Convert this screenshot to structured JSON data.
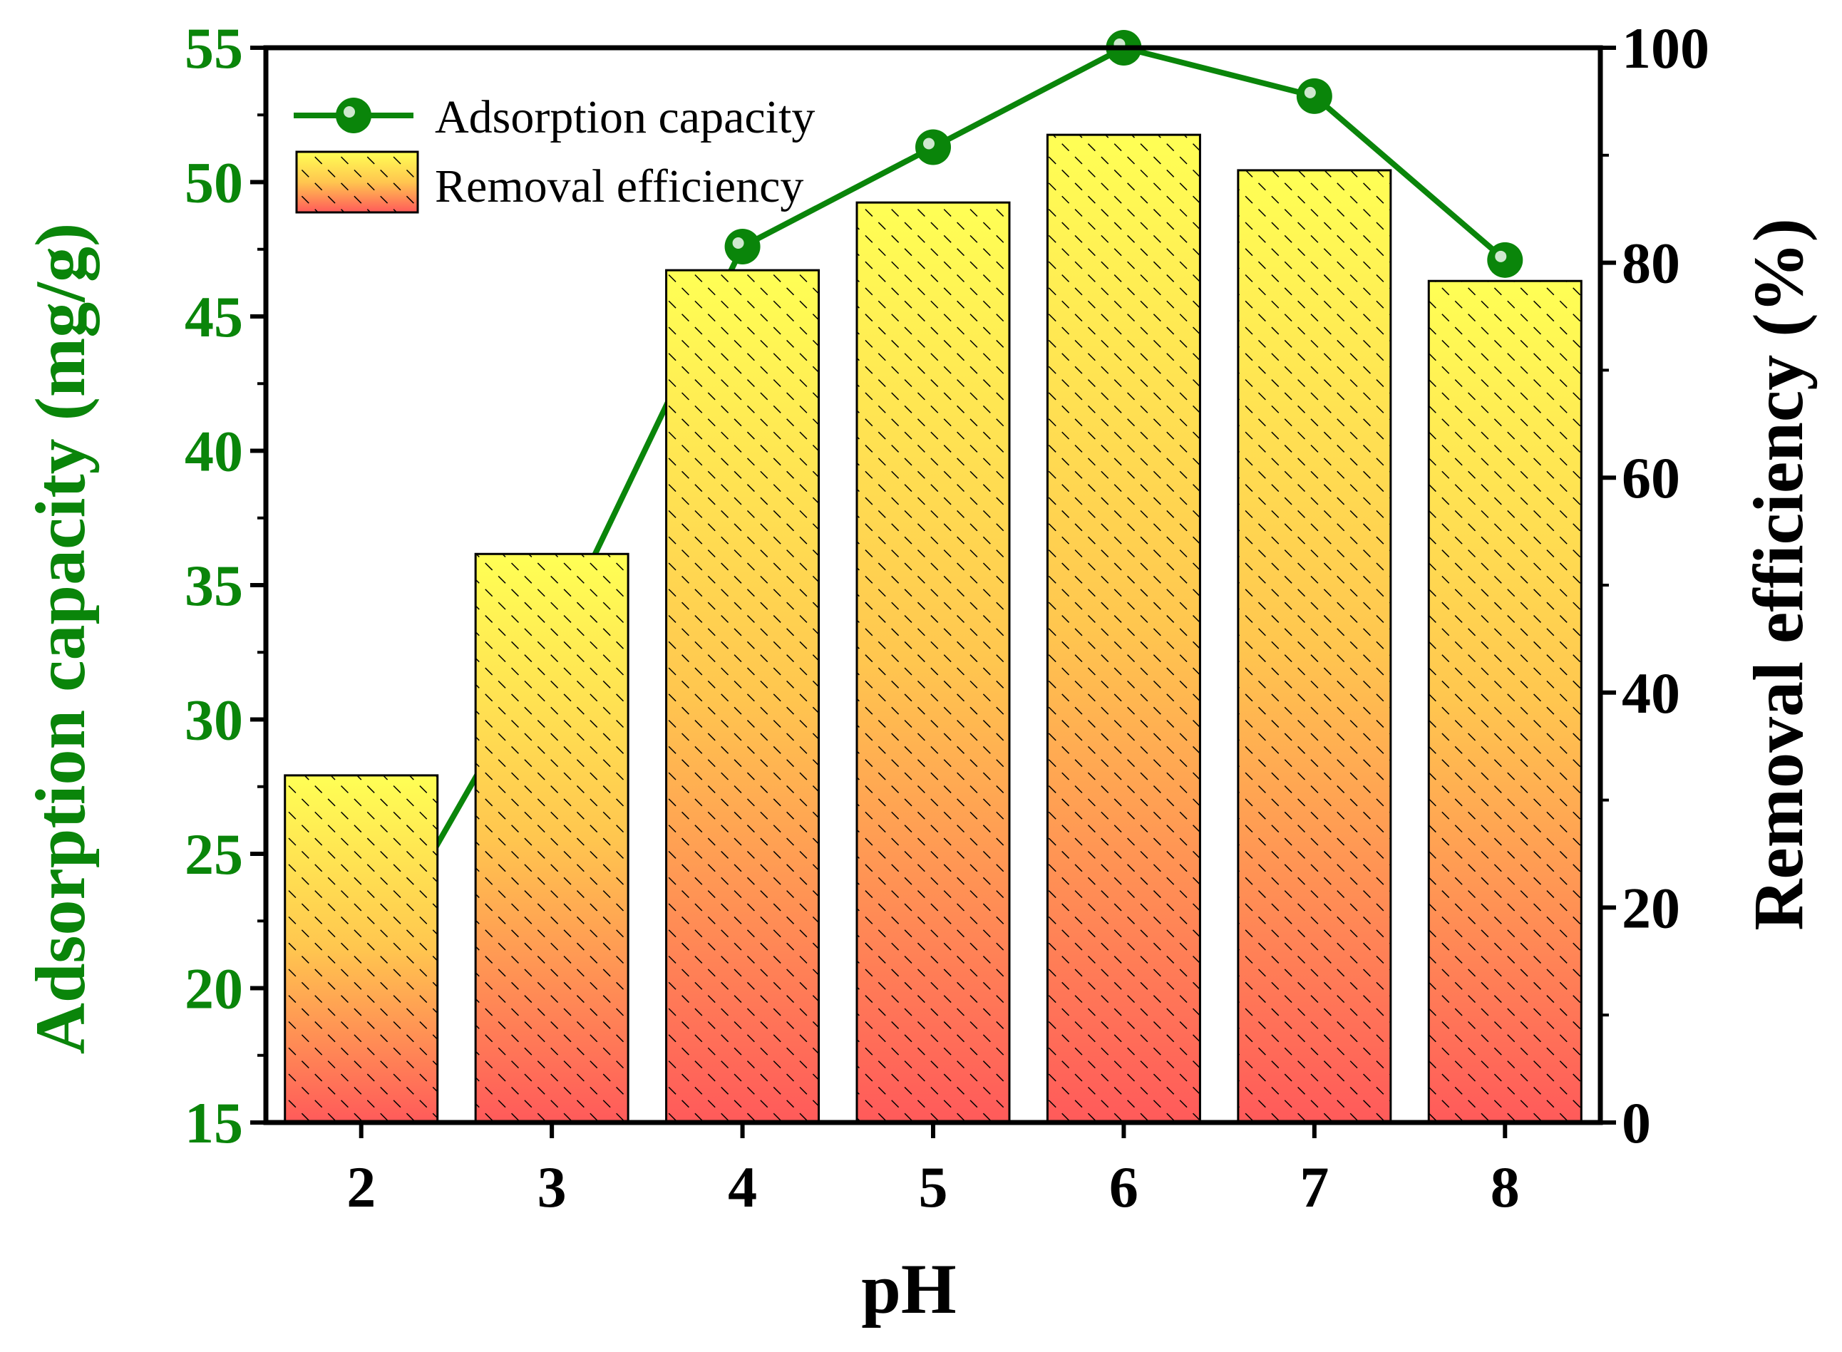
{
  "chart_data": {
    "type": "bar+line",
    "x": [
      2,
      3,
      4,
      5,
      6,
      7,
      8
    ],
    "xlabel": "pH",
    "series": [
      {
        "name": "Removal efficiency",
        "type": "bar",
        "axis": "right",
        "values": [
          32.3,
          52.9,
          79.3,
          85.6,
          91.9,
          88.6,
          78.3
        ]
      },
      {
        "name": "Adsorption capacity",
        "type": "line",
        "axis": "left",
        "values": [
          20.4,
          32.8,
          47.6,
          51.3,
          55.0,
          53.2,
          47.1
        ]
      }
    ],
    "left_axis": {
      "label": "Adsorption capacity (mg/g)",
      "ylim": [
        15,
        55
      ],
      "ticks": [
        15,
        20,
        25,
        30,
        35,
        40,
        45,
        50,
        55
      ]
    },
    "right_axis": {
      "label": "Removal efficiency (%)",
      "ylim": [
        0,
        100
      ],
      "ticks": [
        0,
        20,
        40,
        60,
        80,
        100
      ]
    },
    "legend": {
      "placement": "top-left",
      "entries": [
        "Adsorption capacity",
        "Removal efficiency"
      ]
    },
    "colors": {
      "line": "#0a850a",
      "left_axis_text": "#0a850a",
      "bar_top": "#ffff55",
      "bar_bottom": "#ff5a5a",
      "hatch": "#000000"
    }
  }
}
